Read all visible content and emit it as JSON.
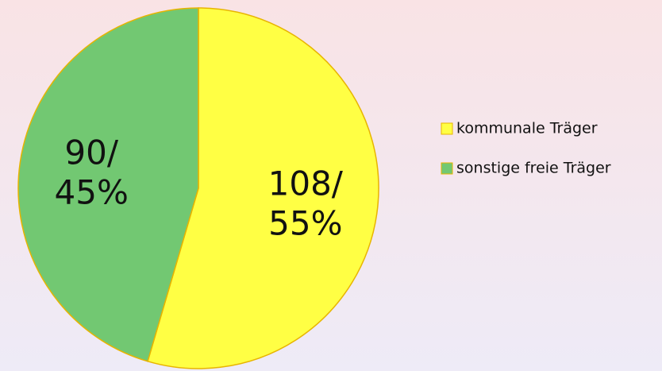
{
  "chart_data": {
    "type": "pie",
    "categories": [
      "kommunale Träger",
      "sonstige freie Träger"
    ],
    "values": [
      108,
      90
    ],
    "value_labels": [
      "108/\n55%",
      "90/\n45%"
    ],
    "colors": [
      "#ffff44",
      "#72c872"
    ],
    "legend": "right"
  }
}
